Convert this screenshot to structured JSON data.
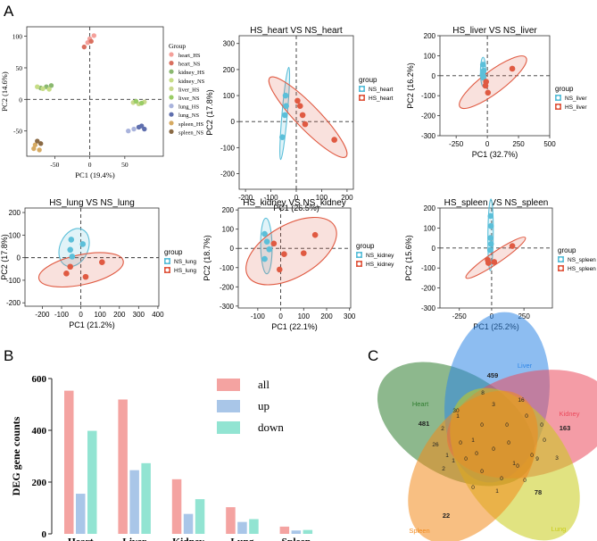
{
  "figure": {
    "panel_labels": [
      "A",
      "B",
      "C"
    ]
  },
  "chart_data": [
    {
      "type": "scatter",
      "id": "pca_all",
      "title": "",
      "xlabel": "PC1 (19.4%)",
      "ylabel": "PC2 (14.6%)",
      "xlim": [
        -90,
        105
      ],
      "ylim": [
        -90,
        115
      ],
      "x_ticks": [
        -50,
        0,
        50
      ],
      "y_ticks": [
        100,
        50,
        0,
        -50
      ],
      "legend_title": "Group",
      "legend_position": "right",
      "series": [
        {
          "name": "heart_HS",
          "color": "#f4a09a",
          "points": [
            [
              0,
              96
            ],
            [
              6,
              101
            ],
            [
              -3,
              90
            ]
          ]
        },
        {
          "name": "heart_NS",
          "color": "#d9705f",
          "points": [
            [
              -8,
              83
            ],
            [
              2,
              92
            ]
          ]
        },
        {
          "name": "kidney_HS",
          "color": "#8ab870",
          "points": [
            [
              -70,
              18
            ],
            [
              -62,
              20
            ],
            [
              -55,
              22
            ]
          ]
        },
        {
          "name": "kidney_NS",
          "color": "#c6dd86",
          "points": [
            [
              -75,
              20
            ],
            [
              -67,
              17
            ],
            [
              -58,
              16
            ]
          ]
        },
        {
          "name": "liver_HS",
          "color": "#c9d98d",
          "points": [
            [
              62,
              -5
            ],
            [
              70,
              -7
            ],
            [
              78,
              -4
            ]
          ]
        },
        {
          "name": "liver_NS",
          "color": "#99cc66",
          "points": [
            [
              66,
              -3
            ],
            [
              74,
              -6
            ]
          ]
        },
        {
          "name": "lung_HS",
          "color": "#a9b3dc",
          "points": [
            [
              55,
              -50
            ],
            [
              63,
              -47
            ]
          ]
        },
        {
          "name": "lung_NS",
          "color": "#5f6fae",
          "points": [
            [
              70,
              -44
            ],
            [
              78,
              -47
            ],
            [
              74,
              -42
            ]
          ]
        },
        {
          "name": "spleen_HS",
          "color": "#d6aa62",
          "points": [
            [
              -78,
              -72
            ],
            [
              -72,
              -80
            ],
            [
              -80,
              -78
            ]
          ]
        },
        {
          "name": "spleen_NS",
          "color": "#8a6a45",
          "points": [
            [
              -75,
              -66
            ],
            [
              -70,
              -70
            ]
          ]
        }
      ]
    },
    {
      "type": "scatter",
      "id": "heart",
      "title": "HS_heart VS NS_heart",
      "xlabel": "PC1 (26.5%)",
      "ylabel": "PC2 (17.8%)",
      "xlim": [
        -225,
        225
      ],
      "ylim": [
        -260,
        330
      ],
      "x_ticks": [
        -200,
        -100,
        0,
        100,
        200
      ],
      "y_ticks": [
        300,
        200,
        100,
        0,
        -100,
        -200
      ],
      "legend_title": "group",
      "series": [
        {
          "name": "NS_heart",
          "color": "#5bbfd9",
          "points": [
            [
              -42,
              100
            ],
            [
              -40,
              60
            ],
            [
              -45,
              25
            ],
            [
              -55,
              -60
            ]
          ]
        },
        {
          "name": "HS_heart",
          "color": "#e05a42",
          "points": [
            [
              5,
              80
            ],
            [
              15,
              60
            ],
            [
              25,
              25
            ],
            [
              150,
              -70
            ],
            [
              35,
              -10
            ]
          ]
        }
      ]
    },
    {
      "type": "scatter",
      "id": "liver",
      "title": "HS_liver VS NS_liver",
      "xlabel": "PC1 (32.7%)",
      "ylabel": "PC2 (16.2%)",
      "xlim": [
        -380,
        500
      ],
      "ylim": [
        -300,
        200
      ],
      "x_ticks": [
        -250,
        0,
        250,
        500
      ],
      "y_ticks": [
        200,
        100,
        0,
        -100,
        -200,
        -300
      ],
      "legend_title": "group",
      "series": [
        {
          "name": "NS_liver",
          "color": "#5bbfd9",
          "points": [
            [
              -35,
              55
            ],
            [
              -30,
              25
            ],
            [
              -38,
              5
            ],
            [
              -32,
              -10
            ]
          ]
        },
        {
          "name": "HS_liver",
          "color": "#e05a42",
          "points": [
            [
              -10,
              -30
            ],
            [
              -15,
              -50
            ],
            [
              5,
              -85
            ],
            [
              200,
              35
            ]
          ]
        }
      ]
    },
    {
      "type": "scatter",
      "id": "lung",
      "title": "HS_lung VS NS_lung",
      "xlabel": "PC1 (21.2%)",
      "ylabel": "PC2 (17.8%)",
      "xlim": [
        -290,
        405
      ],
      "ylim": [
        -215,
        220
      ],
      "x_ticks": [
        -200,
        -100,
        0,
        100,
        200,
        300,
        400
      ],
      "y_ticks": [
        200,
        100,
        0,
        -100,
        -200
      ],
      "legend_title": "group",
      "series": [
        {
          "name": "NS_lung",
          "color": "#5bbfd9",
          "points": [
            [
              -50,
              80
            ],
            [
              10,
              60
            ],
            [
              -55,
              35
            ],
            [
              -45,
              5
            ]
          ]
        },
        {
          "name": "HS_lung",
          "color": "#e05a42",
          "points": [
            [
              -75,
              -70
            ],
            [
              25,
              -85
            ],
            [
              110,
              -20
            ],
            [
              -55,
              -40
            ]
          ]
        }
      ]
    },
    {
      "type": "scatter",
      "id": "kidney",
      "title": "HS_kidney VS NS_kidney",
      "xlabel": "PC1 (22.1%)",
      "ylabel": "PC2 (18.7%)",
      "xlim": [
        -185,
        305
      ],
      "ylim": [
        -310,
        210
      ],
      "x_ticks": [
        -100,
        0,
        100,
        200,
        300
      ],
      "y_ticks": [
        200,
        100,
        0,
        -100,
        -200,
        -300
      ],
      "legend_title": "group",
      "series": [
        {
          "name": "NS_kidney",
          "color": "#5bbfd9",
          "points": [
            [
              -70,
              75
            ],
            [
              -60,
              35
            ],
            [
              -70,
              -55
            ],
            [
              -50,
              -5
            ]
          ]
        },
        {
          "name": "HS_kidney",
          "color": "#e05a42",
          "points": [
            [
              -30,
              25
            ],
            [
              15,
              -30
            ],
            [
              100,
              -25
            ],
            [
              150,
              70
            ],
            [
              -5,
              -110
            ]
          ]
        }
      ]
    },
    {
      "type": "scatter",
      "id": "spleen",
      "title": "HS_spleen VS NS_spleen",
      "xlabel": "PC1 (25.2%)",
      "ylabel": "PC2 (15.6%)",
      "xlim": [
        -400,
        470
      ],
      "ylim": [
        -300,
        200
      ],
      "x_ticks": [
        -250,
        0,
        250
      ],
      "y_ticks": [
        200,
        100,
        0,
        -100,
        -200,
        -300
      ],
      "legend_title": "group",
      "series": [
        {
          "name": "NS_spleen",
          "color": "#5bbfd9",
          "points": [
            [
              -8,
              160
            ],
            [
              -6,
              110
            ],
            [
              -10,
              50
            ],
            [
              -12,
              -10
            ],
            [
              -5,
              20
            ]
          ]
        },
        {
          "name": "HS_spleen",
          "color": "#e05a42",
          "points": [
            [
              -30,
              -60
            ],
            [
              -25,
              -75
            ],
            [
              20,
              -70
            ],
            [
              160,
              10
            ]
          ]
        }
      ]
    },
    {
      "type": "bar",
      "id": "deg",
      "title": "",
      "ylabel": "DEG gene counts",
      "xlabel": "",
      "ylim": [
        0,
        600
      ],
      "y_ticks": [
        0,
        200,
        400,
        600
      ],
      "categories": [
        "Heart",
        "Liver",
        "Kidney",
        "Lung",
        "Spleen"
      ],
      "legend_position": "top-right",
      "series": [
        {
          "name": "all",
          "color": "#f4a3a1",
          "values": [
            553,
            519,
            211,
            103,
            28
          ]
        },
        {
          "name": "up",
          "color": "#a9c6e8",
          "values": [
            155,
            246,
            77,
            46,
            13
          ]
        },
        {
          "name": "down",
          "color": "#92e4d2",
          "values": [
            398,
            273,
            134,
            57,
            15
          ]
        }
      ]
    },
    {
      "type": "venn",
      "id": "venn",
      "sets": [
        {
          "name": "Heart",
          "color": "#2f7d2f"
        },
        {
          "name": "Liver",
          "color": "#2f86e6"
        },
        {
          "name": "Kidney",
          "color": "#eb4a5c"
        },
        {
          "name": "Lung",
          "color": "#c8cc19"
        },
        {
          "name": "Spleen",
          "color": "#f28a1c"
        }
      ],
      "region_counts": [
        "481",
        "459",
        "163",
        "78",
        "22",
        "30",
        "8",
        "16",
        "3",
        "1",
        "2",
        "26",
        "1",
        "1",
        "0",
        "0",
        "0",
        "0",
        "0",
        "0",
        "0",
        "0",
        "0",
        "0",
        "0",
        "0",
        "0",
        "0",
        "1",
        "1",
        "9",
        "3",
        "0",
        "1",
        "2",
        "0"
      ]
    }
  ]
}
